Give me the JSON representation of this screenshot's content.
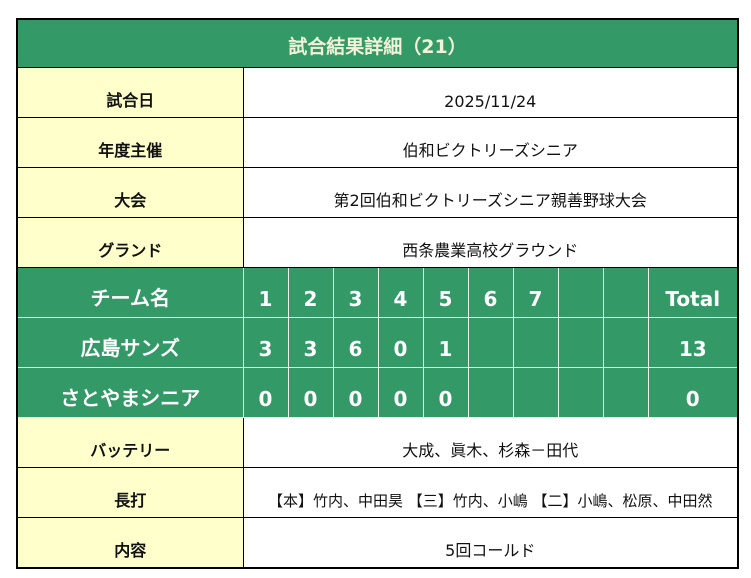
{
  "title": "試合結果詳細（21）",
  "colors": {
    "header_green": "#339966",
    "label_yellow": "#ffffcc"
  },
  "info_top": [
    {
      "label": "試合日",
      "value": "2025/11/24"
    },
    {
      "label": "年度主催",
      "value": "伯和ビクトリーズシニア"
    },
    {
      "label": "大会",
      "value": "第2回伯和ビクトリーズシニア親善野球大会"
    },
    {
      "label": "グランド",
      "value": "西条農業高校グラウンド"
    }
  ],
  "scoreboard": {
    "header": {
      "team": "チーム名",
      "innings": [
        "1",
        "2",
        "3",
        "4",
        "5",
        "6",
        "7",
        "",
        ""
      ],
      "total": "Total"
    },
    "teams": [
      {
        "name": "広島サンズ",
        "innings": [
          "3",
          "3",
          "6",
          "0",
          "1",
          "",
          "",
          "",
          ""
        ],
        "total": "13"
      },
      {
        "name": "さとやまシニア",
        "innings": [
          "0",
          "0",
          "0",
          "0",
          "0",
          "",
          "",
          "",
          ""
        ],
        "total": "0"
      }
    ]
  },
  "info_bottom": [
    {
      "label": "バッテリー",
      "value": "大成、眞木、杉森－田代"
    },
    {
      "label": "長打",
      "value": "【本】竹内、中田昊 【三】竹内、小嶋 【二】小嶋、松原、中田然"
    },
    {
      "label": "内容",
      "value": "5回コールド"
    }
  ]
}
